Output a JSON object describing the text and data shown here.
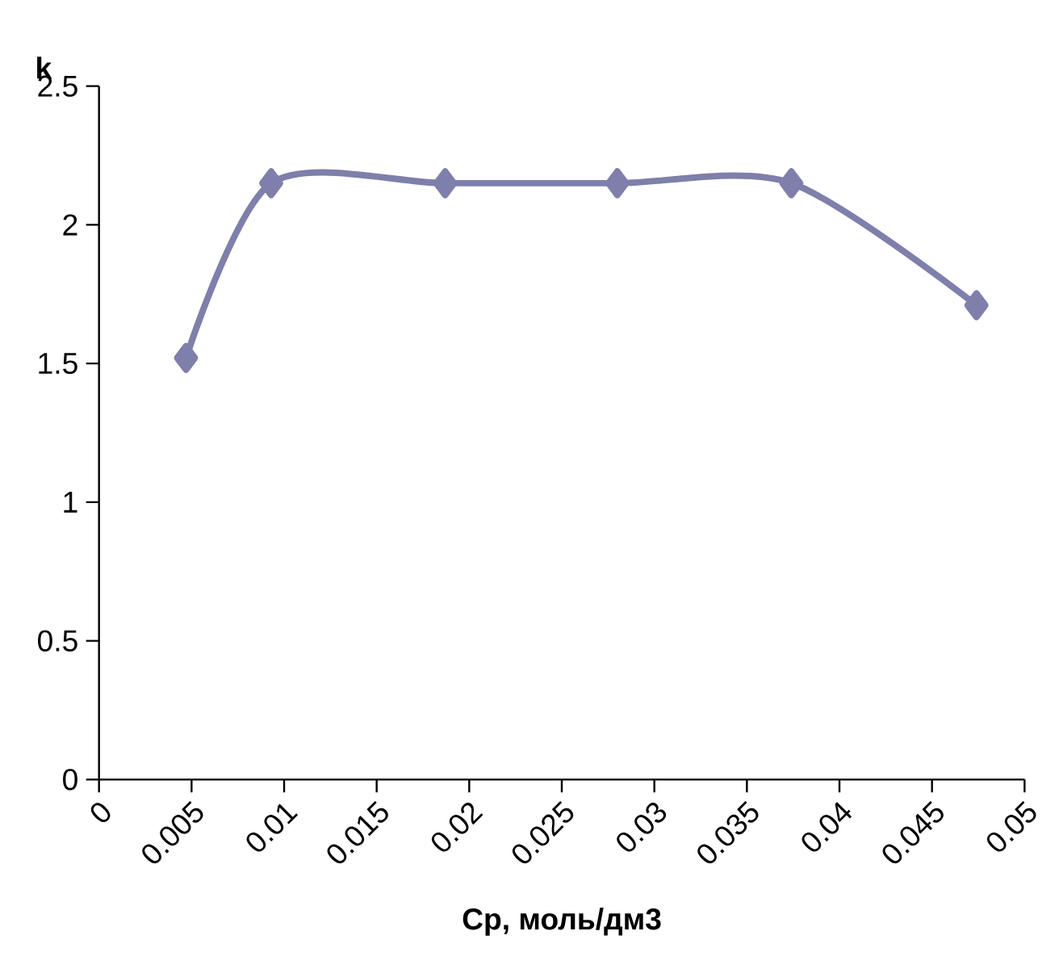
{
  "chart_data": {
    "type": "line",
    "xlabel": "Ср, моль/дм3",
    "ylabel": "k",
    "x": [
      0.0047,
      0.0093,
      0.0187,
      0.028,
      0.0374,
      0.0474
    ],
    "series": [
      {
        "color": "#7f7fab",
        "values": [
          1.52,
          2.15,
          2.15,
          2.15,
          2.15,
          1.71
        ]
      }
    ],
    "xlim": [
      0,
      0.05
    ],
    "xticks": [
      0,
      0.005,
      0.01,
      0.015,
      0.02,
      0.025,
      0.03,
      0.035,
      0.04,
      0.045,
      0.05
    ],
    "ylim": [
      0,
      2.5
    ],
    "yticks": [
      0,
      0.5,
      1,
      1.5,
      2,
      2.5
    ],
    "grid": false,
    "marker": "diamond",
    "line_style": "solid"
  }
}
